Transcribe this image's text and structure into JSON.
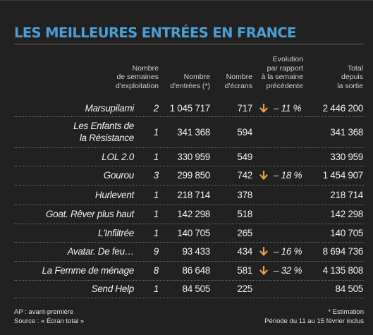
{
  "title": "LES MEILLEURES ENTRÉES EN FRANCE",
  "headers": {
    "weeks": [
      "Nombre",
      "de semaines",
      "d'exploitation"
    ],
    "entries": [
      "Nombre",
      "d'entrées (*)"
    ],
    "screens": [
      "Nombre",
      "d'écrans"
    ],
    "evolution": [
      "Evolution",
      "par rapport",
      "à la semaine",
      "précédente"
    ],
    "total": [
      "Total",
      "depuis",
      "la sortie"
    ]
  },
  "colors": {
    "title": "#4a9fd4",
    "arrow": "#e8a24a",
    "background": "#212121"
  },
  "rows": [
    {
      "film": [
        "Marsupilami"
      ],
      "weeks": "2",
      "entries": "1 045 717",
      "screens": "717",
      "trend": "down",
      "evolution": "– 11 %",
      "total": "2 446 200"
    },
    {
      "film": [
        "Les Enfants de",
        "la Résistance"
      ],
      "weeks": "1",
      "entries": "341 368",
      "screens": "594",
      "trend": "",
      "evolution": "",
      "total": "341 368"
    },
    {
      "film": [
        "LOL 2.0"
      ],
      "weeks": "1",
      "entries": "330 959",
      "screens": "549",
      "trend": "",
      "evolution": "",
      "total": "330 959"
    },
    {
      "film": [
        "Gourou"
      ],
      "weeks": "3",
      "entries": "299 850",
      "screens": "742",
      "trend": "down",
      "evolution": "– 18 %",
      "total": "1 454 907"
    },
    {
      "film": [
        "Hurlevent"
      ],
      "weeks": "1",
      "entries": "218 714",
      "screens": "378",
      "trend": "",
      "evolution": "",
      "total": "218 714"
    },
    {
      "film": [
        "Goat. Rêver plus haut"
      ],
      "weeks": "1",
      "entries": "142 298",
      "screens": "518",
      "trend": "",
      "evolution": "",
      "total": "142 298"
    },
    {
      "film": [
        "L'Infiltrée"
      ],
      "weeks": "1",
      "entries": "140 705",
      "screens": "265",
      "trend": "",
      "evolution": "",
      "total": "140 705"
    },
    {
      "film": [
        "Avatar. De feu…"
      ],
      "weeks": "9",
      "entries": "93 433",
      "screens": "434",
      "trend": "down",
      "evolution": "– 16 %",
      "total": "8 694 736"
    },
    {
      "film": [
        "La Femme de ménage"
      ],
      "weeks": "8",
      "entries": "86 648",
      "screens": "581",
      "trend": "down",
      "evolution": "– 32 %",
      "total": "4 135 808"
    },
    {
      "film": [
        "Send Help"
      ],
      "weeks": "1",
      "entries": "84 505",
      "screens": "225",
      "trend": "",
      "evolution": "",
      "total": "84 505"
    }
  ],
  "footer": {
    "left": [
      "AP : avant-première",
      "Source : « Écran total »"
    ],
    "right": [
      "* Estimation",
      "Période du 11 au 15 février inclus"
    ]
  }
}
